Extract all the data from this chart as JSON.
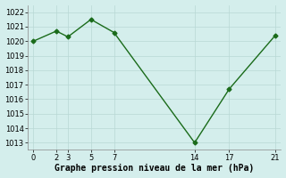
{
  "x": [
    0,
    2,
    3,
    5,
    7,
    14,
    17,
    21
  ],
  "y": [
    1020.0,
    1020.7,
    1020.3,
    1021.5,
    1020.6,
    1013.0,
    1016.7,
    1020.4
  ],
  "xlim": [
    -0.5,
    21.5
  ],
  "ylim": [
    1012.5,
    1022.5
  ],
  "yticks": [
    1013,
    1014,
    1015,
    1016,
    1017,
    1018,
    1019,
    1020,
    1021,
    1022
  ],
  "xticks": [
    0,
    2,
    3,
    5,
    7,
    14,
    17,
    21
  ],
  "line_color": "#1a6b1a",
  "marker": "D",
  "marker_size": 2.5,
  "bg_color": "#d4eeec",
  "grid_color": "#b8d8d4",
  "xlabel": "Graphe pression niveau de la mer (hPa)",
  "xlabel_fontsize": 7.0,
  "tick_fontsize": 6.0,
  "line_width": 1.0
}
